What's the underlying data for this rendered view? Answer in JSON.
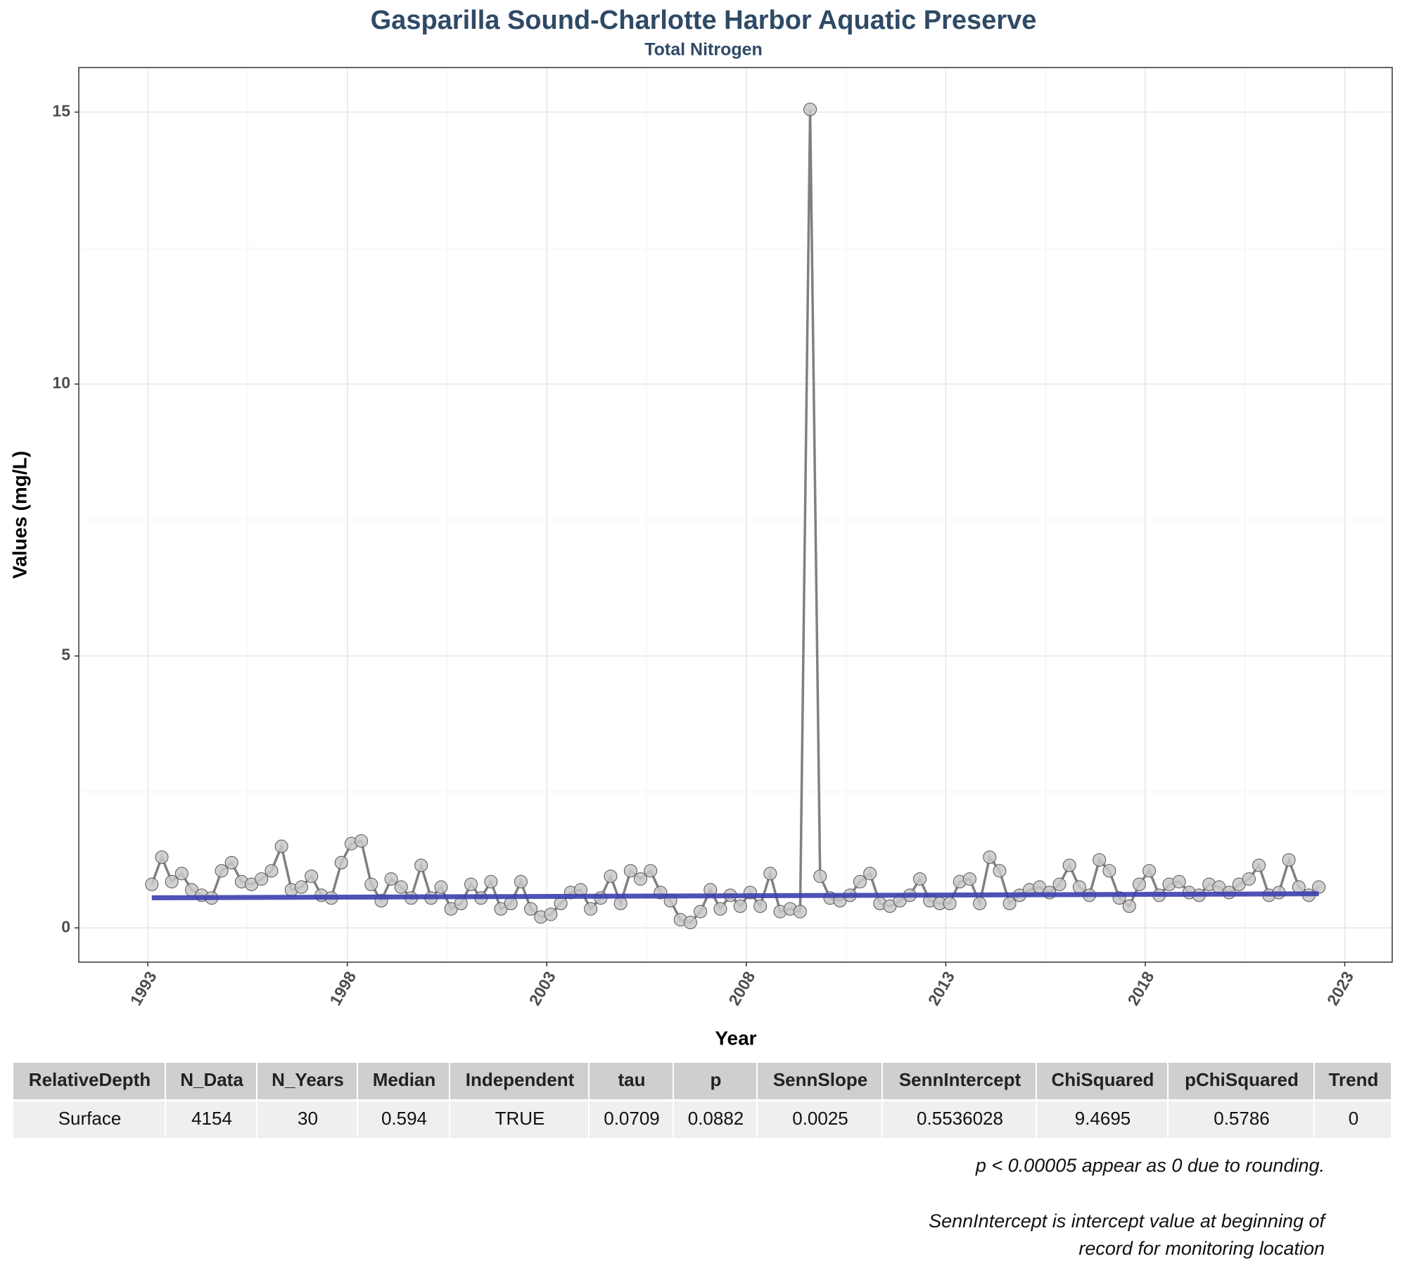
{
  "chart_data": {
    "type": "line",
    "title": "Gasparilla Sound-Charlotte Harbor Aquatic Preserve",
    "subtitle": "Total Nitrogen",
    "x_label": "Year",
    "y_label": "Values (mg/L)",
    "xlim": [
      1991.27,
      2024.19
    ],
    "ylim": [
      -0.63,
      15.82
    ],
    "xticks": [
      1993,
      1998,
      2003,
      2008,
      2013,
      2018,
      2023
    ],
    "yticks": [
      0,
      5,
      10,
      15
    ],
    "x_minor_ticks": [
      1995.5,
      2000.5,
      2005.5,
      2010.5,
      2015.5,
      2020.5
    ],
    "y_minor_ticks": [
      2.5,
      7.5,
      12.5
    ],
    "grid": true,
    "series": [
      {
        "color": "#808080",
        "x": [
          1993.1,
          1993.35,
          1993.6,
          1993.85,
          1994.1,
          1994.35,
          1994.6,
          1994.85,
          1995.1,
          1995.35,
          1995.6,
          1995.85,
          1996.1,
          1996.35,
          1996.6,
          1996.85,
          1997.1,
          1997.35,
          1997.6,
          1997.85,
          1998.1,
          1998.35,
          1998.6,
          1998.85,
          1999.1,
          1999.35,
          1999.6,
          1999.85,
          2000.1,
          2000.35,
          2000.6,
          2000.85,
          2001.1,
          2001.35,
          2001.6,
          2001.85,
          2002.1,
          2002.35,
          2002.6,
          2002.85,
          2003.1,
          2003.35,
          2003.6,
          2003.85,
          2004.1,
          2004.35,
          2004.6,
          2004.85,
          2005.1,
          2005.35,
          2005.6,
          2005.85,
          2006.1,
          2006.35,
          2006.6,
          2006.85,
          2007.1,
          2007.35,
          2007.6,
          2007.85,
          2008.1,
          2008.35,
          2008.6,
          2008.85,
          2009.1,
          2009.35,
          2009.6,
          2009.85,
          2010.1,
          2010.35,
          2010.6,
          2010.85,
          2011.1,
          2011.35,
          2011.6,
          2011.85,
          2012.1,
          2012.35,
          2012.6,
          2012.85,
          2013.1,
          2013.35,
          2013.6,
          2013.85,
          2014.1,
          2014.35,
          2014.6,
          2014.85,
          2015.1,
          2015.35,
          2015.6,
          2015.85,
          2016.1,
          2016.35,
          2016.6,
          2016.85,
          2017.1,
          2017.35,
          2017.6,
          2017.85,
          2018.1,
          2018.35,
          2018.6,
          2018.85,
          2019.1,
          2019.35,
          2019.6,
          2019.85,
          2020.1,
          2020.35,
          2020.6,
          2020.85,
          2021.1,
          2021.35,
          2021.6,
          2021.85,
          2022.1,
          2022.35
        ],
        "values": [
          0.8,
          1.3,
          0.85,
          1.0,
          0.7,
          0.6,
          0.55,
          1.05,
          1.2,
          0.85,
          0.8,
          0.9,
          1.05,
          1.5,
          0.7,
          0.75,
          0.95,
          0.6,
          0.55,
          1.2,
          1.55,
          1.6,
          0.8,
          0.5,
          0.9,
          0.75,
          0.55,
          1.15,
          0.55,
          0.75,
          0.35,
          0.45,
          0.8,
          0.55,
          0.85,
          0.35,
          0.45,
          0.85,
          0.35,
          0.2,
          0.25,
          0.45,
          0.65,
          0.7,
          0.35,
          0.55,
          0.95,
          0.45,
          1.05,
          0.9,
          1.05,
          0.65,
          0.5,
          0.15,
          0.1,
          0.3,
          0.7,
          0.35,
          0.6,
          0.4,
          0.65,
          0.4,
          1.0,
          0.3,
          0.35,
          0.3,
          15.05,
          0.95,
          0.55,
          0.5,
          0.6,
          0.85,
          1.0,
          0.45,
          0.4,
          0.5,
          0.6,
          0.9,
          0.5,
          0.45,
          0.45,
          0.85,
          0.9,
          0.45,
          1.3,
          1.05,
          0.45,
          0.6,
          0.7,
          0.75,
          0.65,
          0.8,
          1.15,
          0.75,
          0.6,
          1.25,
          1.05,
          0.55,
          0.4,
          0.8,
          1.05,
          0.6,
          0.8,
          0.85,
          0.65,
          0.6,
          0.8,
          0.75,
          0.65,
          0.8,
          0.9,
          1.15,
          0.6,
          0.65,
          1.25,
          0.75,
          0.6,
          0.75
        ]
      }
    ],
    "trend": {
      "color": "#3b3fae",
      "x": [
        1993.1,
        2022.35
      ],
      "values": [
        0.554,
        0.627
      ]
    }
  },
  "table": {
    "header": [
      "RelativeDepth",
      "N_Data",
      "N_Years",
      "Median",
      "Independent",
      "tau",
      "p",
      "SennSlope",
      "SennIntercept",
      "ChiSquared",
      "pChiSquared",
      "Trend"
    ],
    "rows": [
      [
        "Surface",
        "4154",
        "30",
        "0.594",
        "TRUE",
        "0.0709",
        "0.0882",
        "0.0025",
        "0.5536028",
        "9.4695",
        "0.5786",
        "0"
      ]
    ]
  },
  "notes": [
    "p < 0.00005 appear as 0 due to rounding.",
    "SennIntercept is intercept value at beginning of",
    "record for monitoring location"
  ]
}
